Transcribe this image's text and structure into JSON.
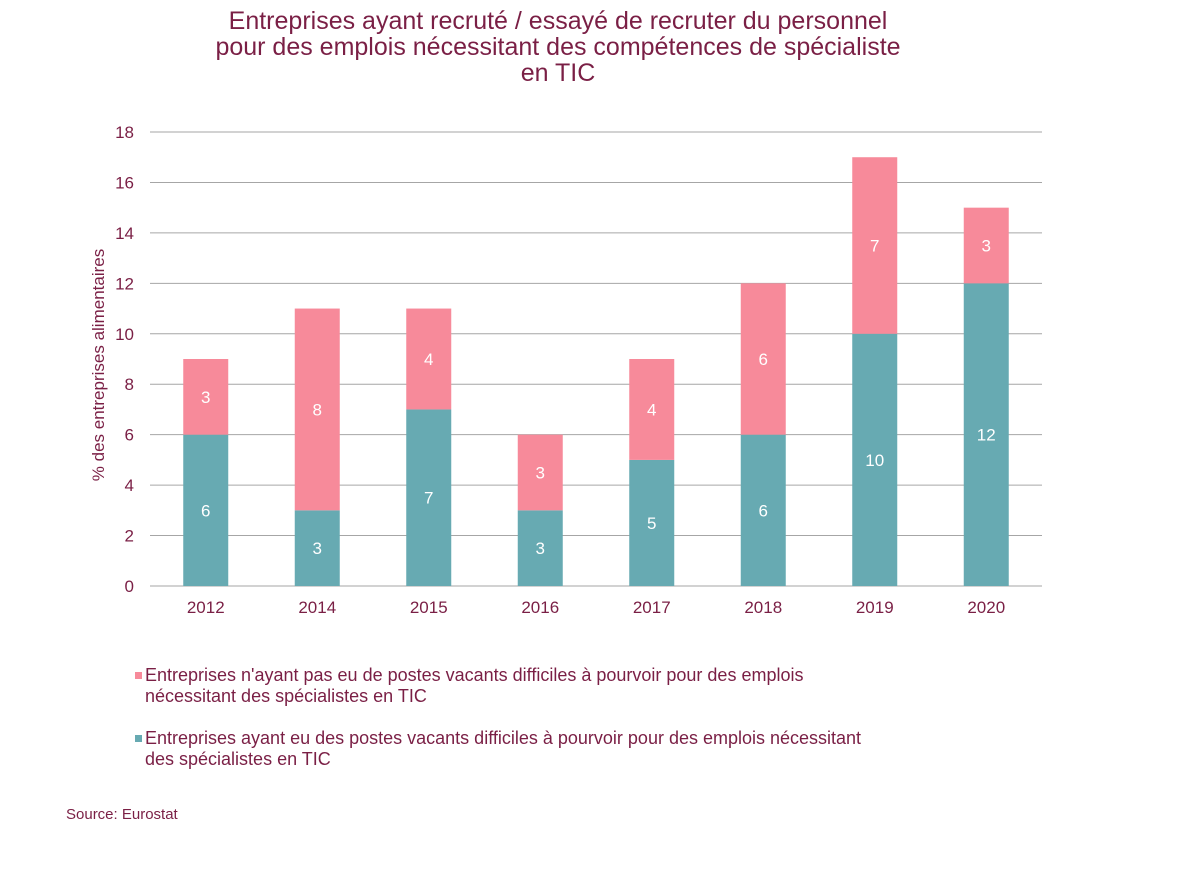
{
  "chart_data": {
    "type": "bar",
    "stacked": true,
    "title": [
      "Entreprises ayant recruté / essayé de recruter du personnel",
      "pour des emplois nécessitant des compétences de spécialiste",
      "en TIC"
    ],
    "xlabel": "",
    "ylabel": "% des entreprises alimentaires",
    "ylim": [
      0,
      18
    ],
    "yticks": [
      0,
      2,
      4,
      6,
      8,
      10,
      12,
      14,
      16,
      18
    ],
    "grid": true,
    "legend_position": "bottom",
    "categories": [
      "2012",
      "2014",
      "2015",
      "2016",
      "2017",
      "2018",
      "2019",
      "2020"
    ],
    "series": [
      {
        "name": "Entreprises ayant eu des postes vacants difficiles à pourvoir pour des emplois nécessitant des spécialistes en TIC",
        "color": "#67aab2",
        "values": [
          6,
          3,
          7,
          3,
          5,
          6,
          10,
          12
        ]
      },
      {
        "name": "Entreprises n'ayant pas eu de postes vacants difficiles à pourvoir pour des emplois nécessitant des spécialistes en TIC",
        "color": "#f78a9a",
        "values": [
          3,
          8,
          4,
          3,
          4,
          6,
          7,
          3
        ]
      }
    ],
    "source": "Source: Eurostat"
  },
  "legend": [
    {
      "label": "Entreprises n'ayant pas eu de postes vacants difficiles à pourvoir pour des emplois",
      "label2": "nécessitant des spécialistes en TIC",
      "color": "#f78a9a"
    },
    {
      "label": "Entreprises ayant eu des postes vacants difficiles à pourvoir pour des emplois nécessitant",
      "label2": "des spécialistes en TIC",
      "color": "#67aab2"
    }
  ],
  "colors": {
    "text": "#7a1f45",
    "grid": "#a6a6a6"
  }
}
